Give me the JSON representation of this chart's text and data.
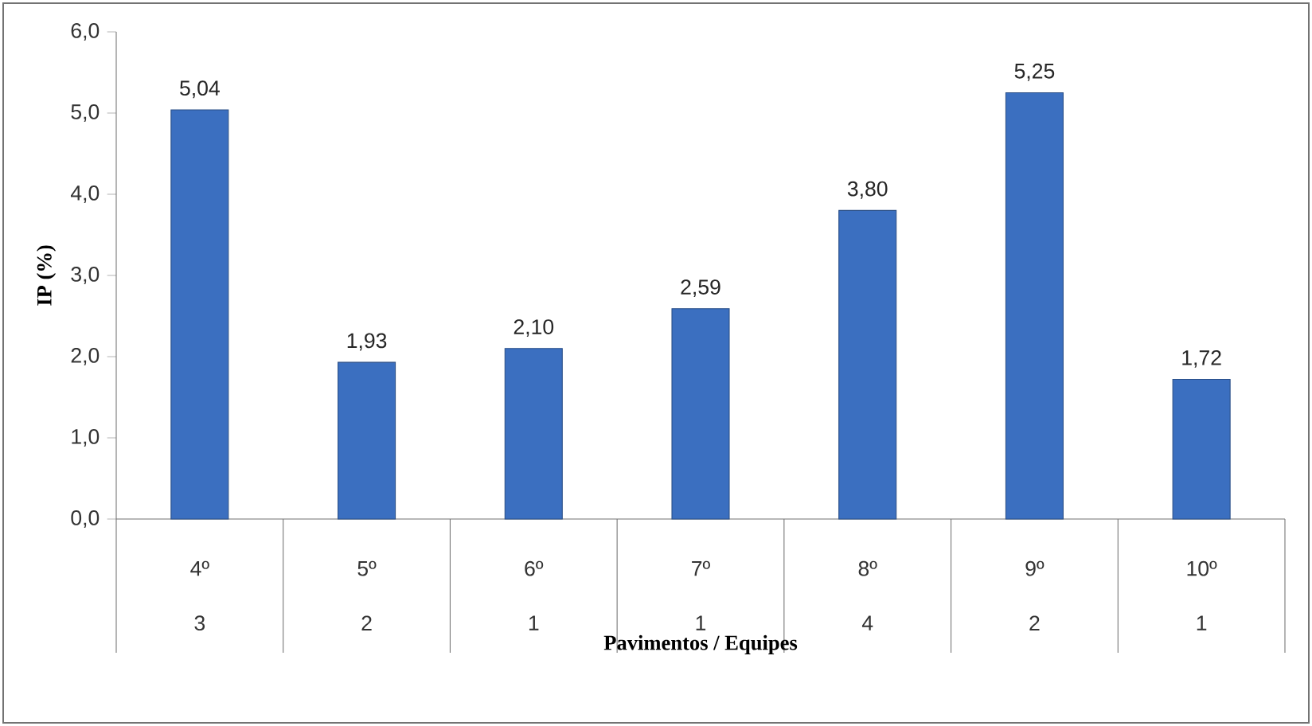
{
  "chart_data": {
    "type": "bar",
    "xlabel": "Pavimentos / Equipes",
    "ylabel": "IP (%)",
    "categories": [
      "4º",
      "5º",
      "6º",
      "7º",
      "8º",
      "9º",
      "10º"
    ],
    "values": [
      5.04,
      1.93,
      2.1,
      2.59,
      3.8,
      5.25,
      1.72
    ],
    "value_labels": [
      "5,04",
      "1,93",
      "2,10",
      "2,59",
      "3,80",
      "5,25",
      "1,72"
    ],
    "color": "#3b6fc0",
    "ylim": [
      0,
      6
    ],
    "yticks": [
      {
        "value": 0,
        "label": "0,0"
      },
      {
        "value": 1,
        "label": "1,0"
      },
      {
        "value": 2,
        "label": "2,0"
      },
      {
        "value": 3,
        "label": "3,0"
      },
      {
        "value": 4,
        "label": "4,0"
      },
      {
        "value": 5,
        "label": "5,0"
      },
      {
        "value": 6,
        "label": "6,0"
      }
    ],
    "annotations": [
      "3",
      "2",
      "1",
      "1",
      "4",
      "2",
      "1"
    ],
    "grid": false
  }
}
